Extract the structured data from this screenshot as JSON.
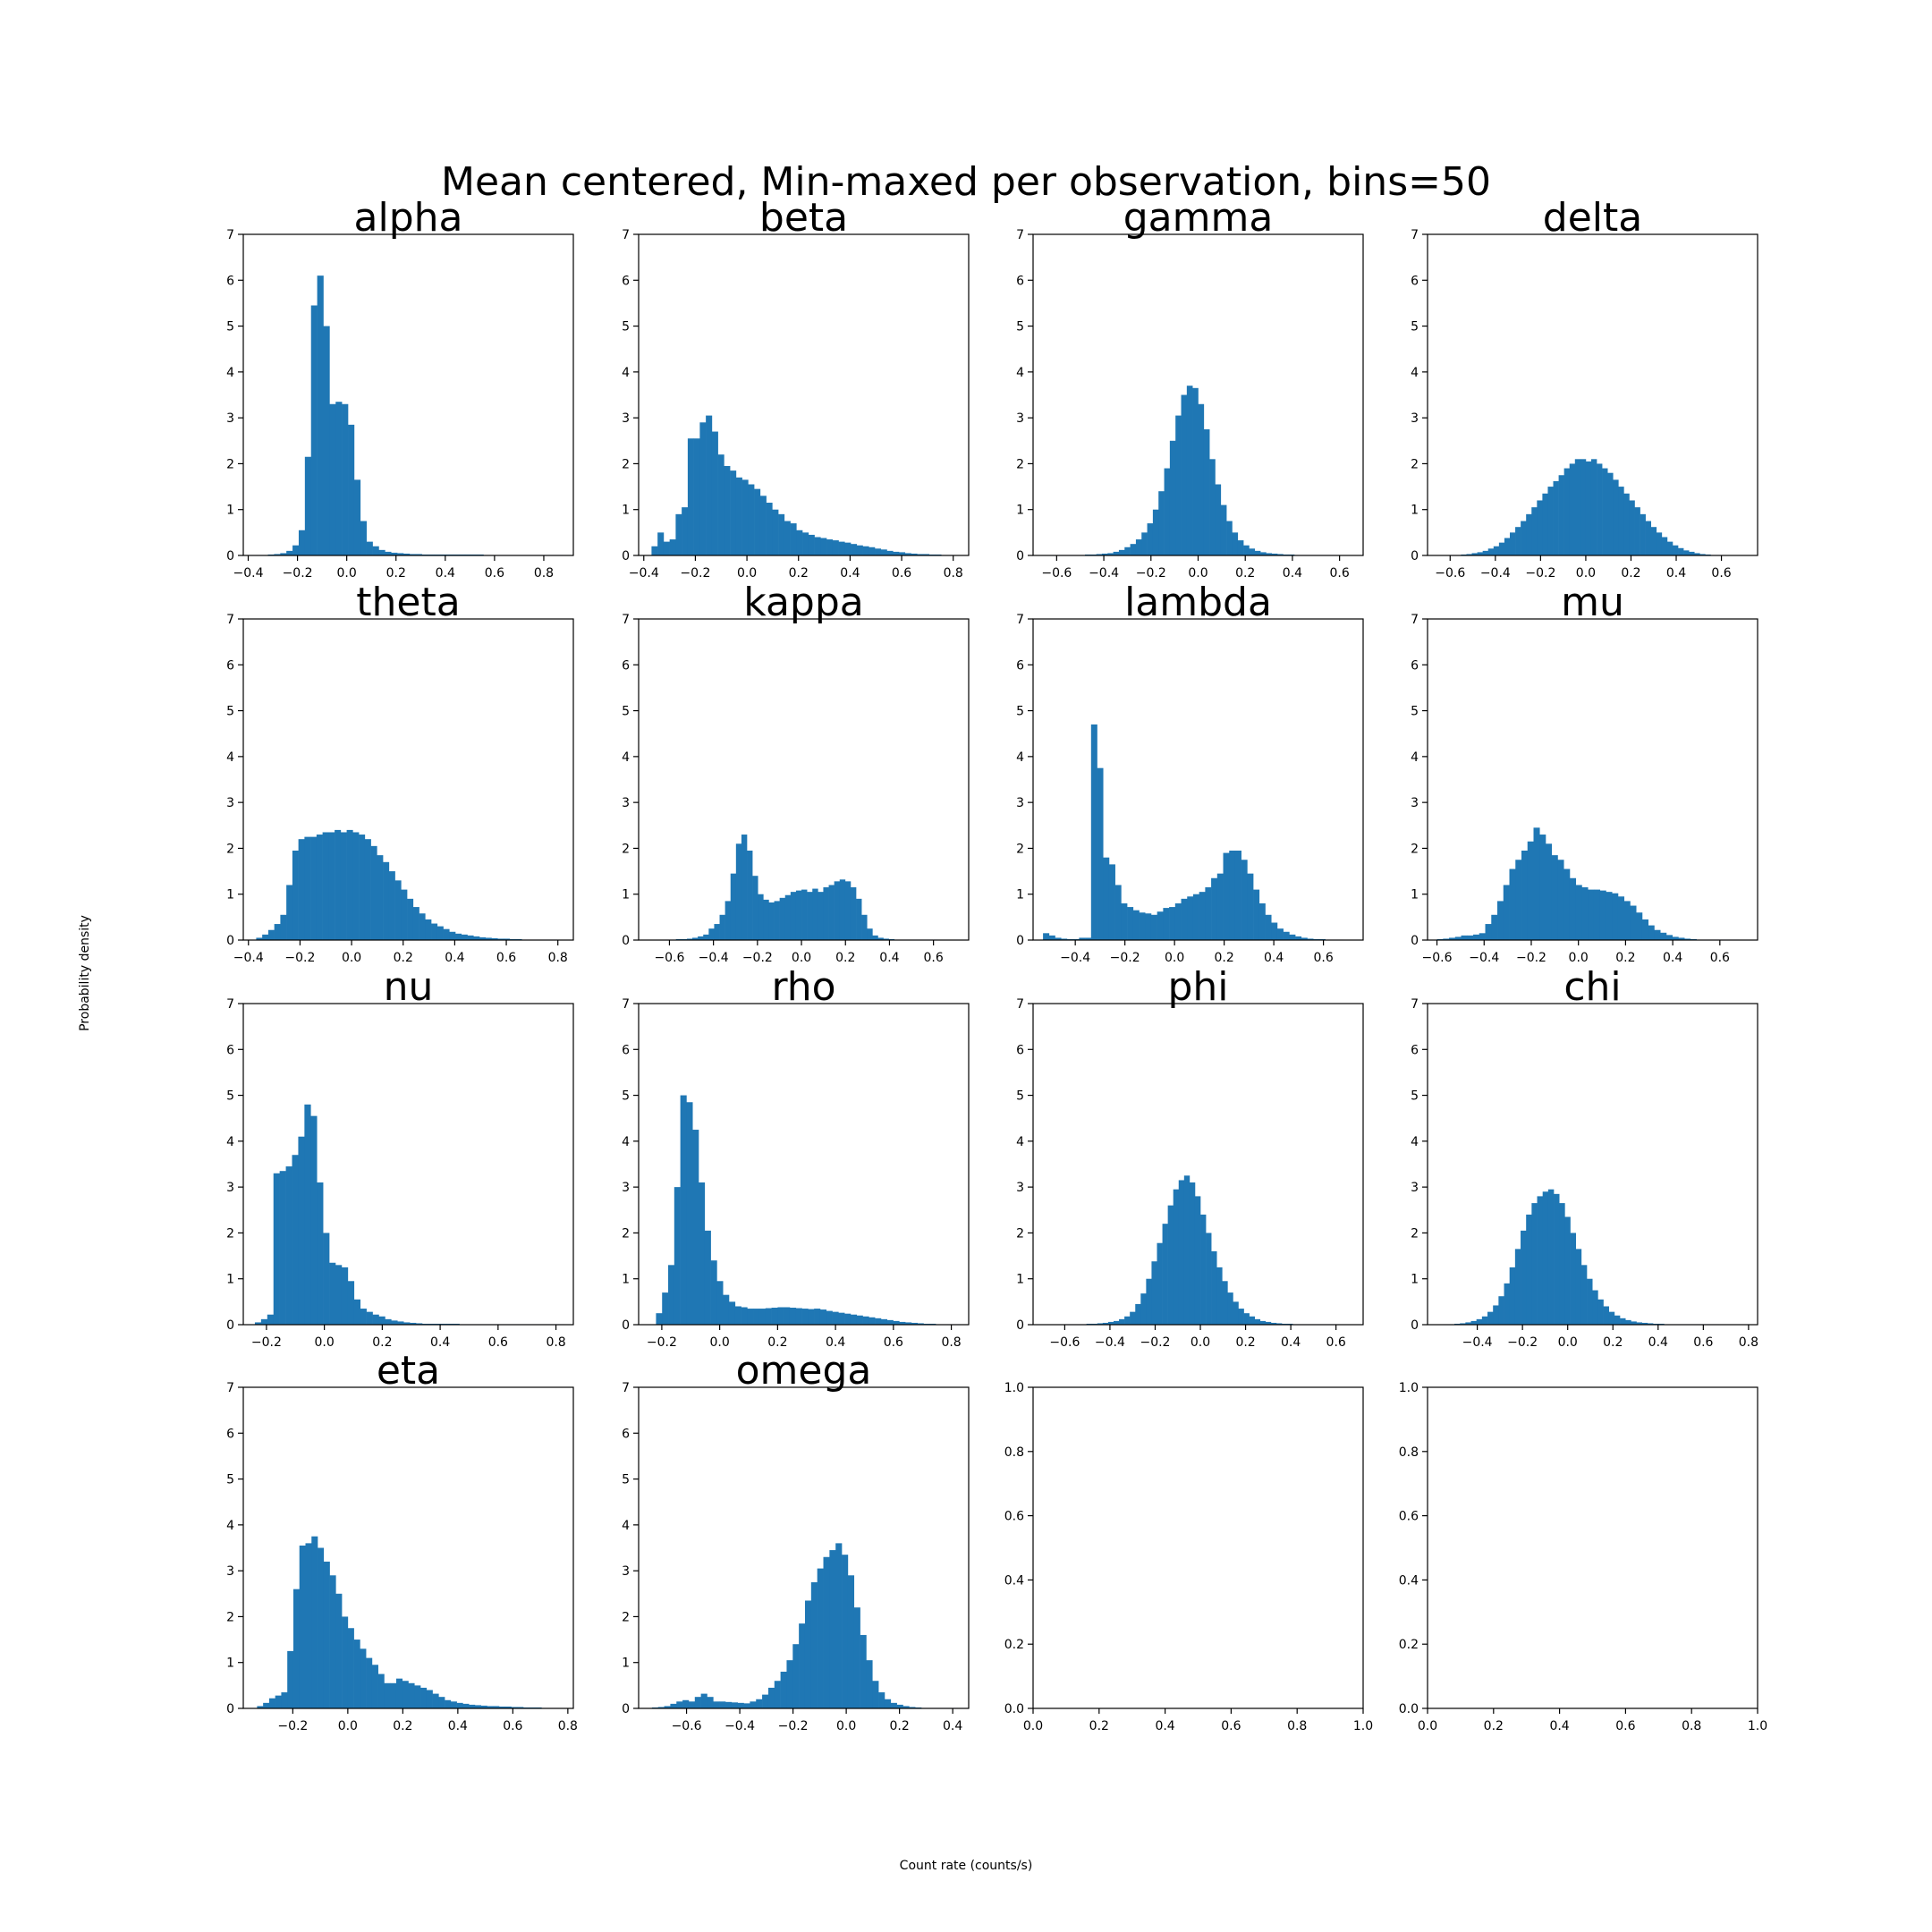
{
  "figure": {
    "suptitle": "Mean centered, Min-maxed per observation, bins=50",
    "xlabel": "Count rate (counts/s)",
    "ylabel": "Probability density"
  },
  "colors": {
    "bar": "#1f77b4",
    "axis": "#000000",
    "background": "#ffffff"
  },
  "chart_data": [
    {
      "type": "bar",
      "title": "alpha",
      "xlim": [
        -0.42,
        0.92
      ],
      "ylim": [
        0,
        7
      ],
      "xticks": [
        -0.4,
        -0.2,
        0.0,
        0.2,
        0.4,
        0.6,
        0.8
      ],
      "yticks": [
        0,
        1,
        2,
        3,
        4,
        5,
        6,
        7
      ],
      "bins_x0": -0.37,
      "bins_x1": 0.88,
      "values": [
        0.01,
        0.01,
        0.02,
        0.03,
        0.05,
        0.1,
        0.22,
        0.55,
        2.15,
        5.45,
        6.1,
        5.0,
        3.3,
        3.35,
        3.3,
        2.85,
        1.65,
        0.75,
        0.3,
        0.2,
        0.12,
        0.08,
        0.06,
        0.05,
        0.04,
        0.03,
        0.03,
        0.02,
        0.02,
        0.02,
        0.02,
        0.02,
        0.02,
        0.02,
        0.02,
        0.02,
        0.02,
        0.01,
        0.01,
        0.01,
        0.01,
        0.01,
        0.01,
        0.01,
        0.01,
        0.01,
        0.01,
        0.01,
        0.01,
        0.01
      ]
    },
    {
      "type": "bar",
      "title": "beta",
      "xlim": [
        -0.42,
        0.86
      ],
      "ylim": [
        0,
        7
      ],
      "xticks": [
        -0.4,
        -0.2,
        0.0,
        0.2,
        0.4,
        0.6,
        0.8
      ],
      "yticks": [
        0,
        1,
        2,
        3,
        4,
        5,
        6,
        7
      ],
      "bins_x0": -0.37,
      "bins_x1": 0.8,
      "values": [
        0.2,
        0.5,
        0.3,
        0.35,
        0.9,
        1.05,
        2.55,
        2.55,
        2.9,
        3.05,
        2.7,
        2.2,
        1.95,
        1.85,
        1.7,
        1.65,
        1.55,
        1.45,
        1.3,
        1.15,
        1.0,
        0.9,
        0.75,
        0.7,
        0.55,
        0.5,
        0.45,
        0.4,
        0.38,
        0.35,
        0.33,
        0.3,
        0.28,
        0.25,
        0.22,
        0.2,
        0.18,
        0.15,
        0.13,
        0.1,
        0.08,
        0.07,
        0.05,
        0.04,
        0.03,
        0.03,
        0.02,
        0.02,
        0.01,
        0.01
      ]
    },
    {
      "type": "bar",
      "title": "gamma",
      "xlim": [
        -0.7,
        0.7
      ],
      "ylim": [
        0,
        7
      ],
      "xticks": [
        -0.6,
        -0.4,
        -0.2,
        0.0,
        0.2,
        0.4,
        0.6
      ],
      "yticks": [
        0,
        1,
        2,
        3,
        4,
        5,
        6,
        7
      ],
      "bins_x0": -0.6,
      "bins_x1": 0.6,
      "values": [
        0.01,
        0.01,
        0.01,
        0.01,
        0.01,
        0.02,
        0.02,
        0.03,
        0.04,
        0.05,
        0.08,
        0.12,
        0.18,
        0.25,
        0.35,
        0.5,
        0.7,
        1.0,
        1.4,
        1.9,
        2.5,
        3.05,
        3.5,
        3.7,
        3.65,
        3.3,
        2.75,
        2.1,
        1.55,
        1.1,
        0.75,
        0.5,
        0.33,
        0.22,
        0.15,
        0.1,
        0.07,
        0.05,
        0.04,
        0.03,
        0.02,
        0.02,
        0.01,
        0.01,
        0.01,
        0.01,
        0.01,
        0.01,
        0.01,
        0.01
      ]
    },
    {
      "type": "bar",
      "title": "delta",
      "xlim": [
        -0.7,
        0.76
      ],
      "ylim": [
        0,
        7
      ],
      "xticks": [
        -0.6,
        -0.4,
        -0.2,
        0.0,
        0.2,
        0.4,
        0.6
      ],
      "yticks": [
        0,
        1,
        2,
        3,
        4,
        5,
        6,
        7
      ],
      "bins_x0": -0.6,
      "bins_x1": 0.6,
      "values": [
        0.01,
        0.01,
        0.02,
        0.03,
        0.05,
        0.07,
        0.1,
        0.15,
        0.2,
        0.28,
        0.38,
        0.5,
        0.62,
        0.75,
        0.9,
        1.05,
        1.2,
        1.35,
        1.5,
        1.62,
        1.75,
        1.9,
        2.0,
        2.1,
        2.1,
        2.05,
        2.1,
        2.0,
        1.9,
        1.8,
        1.65,
        1.5,
        1.35,
        1.2,
        1.05,
        0.9,
        0.75,
        0.62,
        0.5,
        0.4,
        0.3,
        0.22,
        0.16,
        0.11,
        0.08,
        0.05,
        0.03,
        0.02,
        0.01,
        0.01
      ]
    },
    {
      "type": "bar",
      "title": "theta",
      "xlim": [
        -0.42,
        0.86
      ],
      "ylim": [
        0,
        7
      ],
      "xticks": [
        -0.4,
        -0.2,
        0.0,
        0.2,
        0.4,
        0.6,
        0.8
      ],
      "yticks": [
        0,
        1,
        2,
        3,
        4,
        5,
        6,
        7
      ],
      "bins_x0": -0.37,
      "bins_x1": 0.8,
      "values": [
        0.05,
        0.12,
        0.22,
        0.35,
        0.55,
        1.2,
        1.95,
        2.2,
        2.25,
        2.25,
        2.3,
        2.35,
        2.35,
        2.4,
        2.35,
        2.4,
        2.35,
        2.3,
        2.2,
        2.05,
        1.85,
        1.7,
        1.5,
        1.3,
        1.1,
        0.9,
        0.72,
        0.58,
        0.45,
        0.36,
        0.3,
        0.24,
        0.18,
        0.14,
        0.12,
        0.1,
        0.08,
        0.06,
        0.05,
        0.04,
        0.03,
        0.03,
        0.02,
        0.02,
        0.01,
        0.01,
        0.01,
        0.01,
        0.01,
        0.01
      ]
    },
    {
      "type": "bar",
      "title": "kappa",
      "xlim": [
        -0.74,
        0.76
      ],
      "ylim": [
        0,
        7
      ],
      "xticks": [
        -0.6,
        -0.4,
        -0.2,
        0.0,
        0.2,
        0.4,
        0.6
      ],
      "yticks": [
        0,
        1,
        2,
        3,
        4,
        5,
        6,
        7
      ],
      "bins_x0": -0.62,
      "bins_x1": 0.62,
      "values": [
        0.01,
        0.01,
        0.02,
        0.02,
        0.03,
        0.05,
        0.08,
        0.12,
        0.25,
        0.35,
        0.55,
        0.85,
        1.45,
        2.1,
        2.3,
        1.95,
        1.4,
        1.0,
        0.88,
        0.82,
        0.85,
        0.92,
        0.98,
        1.05,
        1.08,
        1.1,
        1.05,
        1.12,
        1.05,
        1.15,
        1.2,
        1.28,
        1.32,
        1.28,
        1.15,
        0.9,
        0.55,
        0.25,
        0.1,
        0.05,
        0.03,
        0.02,
        0.01,
        0.01,
        0.01,
        0.01,
        0.01,
        0.01,
        0.01,
        0.01
      ]
    },
    {
      "type": "bar",
      "title": "lambda",
      "xlim": [
        -0.57,
        0.76
      ],
      "ylim": [
        0,
        7
      ],
      "xticks": [
        -0.4,
        -0.2,
        0.0,
        0.2,
        0.4,
        0.6
      ],
      "yticks": [
        0,
        1,
        2,
        3,
        4,
        5,
        6,
        7
      ],
      "bins_x0": -0.53,
      "bins_x1": 0.68,
      "values": [
        0.15,
        0.1,
        0.05,
        0.03,
        0.02,
        0.02,
        0.05,
        0.05,
        4.7,
        3.75,
        1.8,
        1.65,
        1.2,
        0.8,
        0.72,
        0.65,
        0.6,
        0.58,
        0.55,
        0.62,
        0.7,
        0.72,
        0.8,
        0.9,
        0.95,
        1.0,
        1.05,
        1.15,
        1.35,
        1.45,
        1.9,
        1.95,
        1.95,
        1.75,
        1.45,
        1.1,
        0.8,
        0.55,
        0.38,
        0.25,
        0.18,
        0.12,
        0.08,
        0.05,
        0.03,
        0.02,
        0.02,
        0.01,
        0.01,
        0.01
      ]
    },
    {
      "type": "bar",
      "title": "mu",
      "xlim": [
        -0.64,
        0.76
      ],
      "ylim": [
        0,
        7
      ],
      "xticks": [
        -0.6,
        -0.4,
        -0.2,
        0.0,
        0.2,
        0.4,
        0.6
      ],
      "yticks": [
        0,
        1,
        2,
        3,
        4,
        5,
        6,
        7
      ],
      "bins_x0": -0.6,
      "bins_x1": 0.68,
      "values": [
        0.02,
        0.03,
        0.05,
        0.07,
        0.1,
        0.1,
        0.12,
        0.15,
        0.35,
        0.55,
        0.85,
        1.2,
        1.55,
        1.75,
        1.95,
        2.15,
        2.45,
        2.3,
        2.1,
        1.85,
        1.75,
        1.55,
        1.35,
        1.2,
        1.15,
        1.1,
        1.1,
        1.08,
        1.05,
        1.02,
        0.95,
        0.85,
        0.75,
        0.6,
        0.45,
        0.32,
        0.22,
        0.16,
        0.11,
        0.07,
        0.05,
        0.03,
        0.02,
        0.01,
        0.01,
        0.01,
        0.01,
        0.01,
        0.01,
        0.01
      ]
    },
    {
      "type": "bar",
      "title": "nu",
      "xlim": [
        -0.28,
        0.86
      ],
      "ylim": [
        0,
        7
      ],
      "xticks": [
        -0.2,
        0.0,
        0.2,
        0.4,
        0.6,
        0.8
      ],
      "yticks": [
        0,
        1,
        2,
        3,
        4,
        5,
        6,
        7
      ],
      "bins_x0": -0.24,
      "bins_x1": 0.83,
      "values": [
        0.05,
        0.12,
        0.22,
        3.3,
        3.35,
        3.45,
        3.7,
        4.1,
        4.8,
        4.55,
        3.1,
        2.0,
        1.35,
        1.3,
        1.25,
        0.95,
        0.55,
        0.35,
        0.28,
        0.22,
        0.18,
        0.12,
        0.09,
        0.07,
        0.05,
        0.04,
        0.03,
        0.02,
        0.02,
        0.02,
        0.02,
        0.02,
        0.02,
        0.01,
        0.01,
        0.01,
        0.01,
        0.01,
        0.01,
        0.01,
        0.01,
        0.01,
        0.01,
        0.01,
        0.01,
        0.01,
        0.01,
        0.01,
        0.01,
        0.01
      ]
    },
    {
      "type": "bar",
      "title": "rho",
      "xlim": [
        -0.28,
        0.86
      ],
      "ylim": [
        0,
        7
      ],
      "xticks": [
        -0.2,
        0.0,
        0.2,
        0.4,
        0.6,
        0.8
      ],
      "yticks": [
        0,
        1,
        2,
        3,
        4,
        5,
        6,
        7
      ],
      "bins_x0": -0.22,
      "bins_x1": 0.83,
      "values": [
        0.25,
        0.7,
        1.3,
        3.0,
        5.0,
        4.85,
        4.25,
        3.1,
        2.05,
        1.4,
        0.95,
        0.65,
        0.5,
        0.4,
        0.38,
        0.35,
        0.35,
        0.35,
        0.36,
        0.37,
        0.38,
        0.38,
        0.37,
        0.36,
        0.35,
        0.34,
        0.35,
        0.33,
        0.3,
        0.28,
        0.26,
        0.24,
        0.22,
        0.2,
        0.18,
        0.16,
        0.14,
        0.12,
        0.1,
        0.08,
        0.06,
        0.05,
        0.04,
        0.03,
        0.02,
        0.02,
        0.01,
        0.01,
        0.01,
        0.01
      ]
    },
    {
      "type": "bar",
      "title": "phi",
      "xlim": [
        -0.74,
        0.72
      ],
      "ylim": [
        0,
        7
      ],
      "xticks": [
        -0.6,
        -0.4,
        -0.2,
        0.0,
        0.2,
        0.4,
        0.6
      ],
      "yticks": [
        0,
        1,
        2,
        3,
        4,
        5,
        6,
        7
      ],
      "bins_x0": -0.6,
      "bins_x1": 0.6,
      "values": [
        0.01,
        0.01,
        0.01,
        0.01,
        0.02,
        0.02,
        0.03,
        0.04,
        0.06,
        0.08,
        0.12,
        0.18,
        0.28,
        0.45,
        0.68,
        1.0,
        1.38,
        1.78,
        2.2,
        2.6,
        2.95,
        3.15,
        3.25,
        3.1,
        2.8,
        2.4,
        2.0,
        1.6,
        1.25,
        0.95,
        0.7,
        0.5,
        0.35,
        0.25,
        0.18,
        0.12,
        0.08,
        0.06,
        0.04,
        0.03,
        0.02,
        0.02,
        0.01,
        0.01,
        0.01,
        0.01,
        0.01,
        0.01,
        0.01,
        0.01
      ]
    },
    {
      "type": "bar",
      "title": "chi",
      "xlim": [
        -0.62,
        0.84
      ],
      "ylim": [
        0,
        7
      ],
      "xticks": [
        -0.4,
        -0.2,
        0.0,
        0.2,
        0.4,
        0.6,
        0.8
      ],
      "yticks": [
        0,
        1,
        2,
        3,
        4,
        5,
        6,
        7
      ],
      "bins_x0": -0.55,
      "bins_x1": 0.67,
      "values": [
        0.01,
        0.01,
        0.02,
        0.03,
        0.05,
        0.08,
        0.12,
        0.18,
        0.28,
        0.42,
        0.62,
        0.9,
        1.25,
        1.65,
        2.05,
        2.4,
        2.65,
        2.8,
        2.9,
        2.95,
        2.85,
        2.65,
        2.35,
        2.0,
        1.65,
        1.3,
        1.0,
        0.75,
        0.55,
        0.4,
        0.28,
        0.2,
        0.14,
        0.1,
        0.07,
        0.05,
        0.04,
        0.03,
        0.02,
        0.02,
        0.01,
        0.01,
        0.01,
        0.01,
        0.01,
        0.01,
        0.01,
        0.01,
        0.01,
        0.01
      ]
    },
    {
      "type": "bar",
      "title": "eta",
      "xlim": [
        -0.38,
        0.82
      ],
      "ylim": [
        0,
        7
      ],
      "xticks": [
        -0.2,
        0.0,
        0.2,
        0.4,
        0.6,
        0.8
      ],
      "yticks": [
        0,
        1,
        2,
        3,
        4,
        5,
        6,
        7
      ],
      "bins_x0": -0.33,
      "bins_x1": 0.77,
      "values": [
        0.05,
        0.12,
        0.22,
        0.28,
        0.35,
        1.25,
        2.6,
        3.55,
        3.6,
        3.75,
        3.5,
        3.2,
        2.9,
        2.5,
        2.0,
        1.75,
        1.5,
        1.3,
        1.1,
        0.95,
        0.75,
        0.55,
        0.55,
        0.65,
        0.6,
        0.55,
        0.5,
        0.45,
        0.4,
        0.32,
        0.25,
        0.18,
        0.15,
        0.12,
        0.1,
        0.08,
        0.07,
        0.06,
        0.05,
        0.05,
        0.04,
        0.04,
        0.03,
        0.03,
        0.02,
        0.02,
        0.02,
        0.01,
        0.01,
        0.01
      ]
    },
    {
      "type": "bar",
      "title": "omega",
      "xlim": [
        -0.78,
        0.46
      ],
      "ylim": [
        0,
        7
      ],
      "xticks": [
        -0.6,
        -0.4,
        -0.2,
        0.0,
        0.2,
        0.4
      ],
      "yticks": [
        0,
        1,
        2,
        3,
        4,
        5,
        6,
        7
      ],
      "bins_x0": -0.73,
      "bins_x1": 0.42,
      "values": [
        0.02,
        0.03,
        0.05,
        0.1,
        0.15,
        0.18,
        0.15,
        0.25,
        0.32,
        0.25,
        0.15,
        0.15,
        0.14,
        0.13,
        0.12,
        0.11,
        0.15,
        0.2,
        0.3,
        0.45,
        0.6,
        0.8,
        1.05,
        1.4,
        1.85,
        2.35,
        2.75,
        3.05,
        3.3,
        3.45,
        3.6,
        3.35,
        2.9,
        2.2,
        1.6,
        1.05,
        0.6,
        0.35,
        0.2,
        0.12,
        0.08,
        0.05,
        0.03,
        0.02,
        0.01,
        0.01,
        0.01,
        0.01,
        0.01,
        0.01
      ]
    },
    {
      "type": "bar",
      "title": "",
      "xlim": [
        0,
        1
      ],
      "ylim": [
        0,
        1
      ],
      "xticks": [
        0.0,
        0.2,
        0.4,
        0.6,
        0.8,
        1.0
      ],
      "yticks": [
        0.0,
        0.2,
        0.4,
        0.6,
        0.8,
        1.0
      ],
      "values": []
    },
    {
      "type": "bar",
      "title": "",
      "xlim": [
        0,
        1
      ],
      "ylim": [
        0,
        1
      ],
      "xticks": [
        0.0,
        0.2,
        0.4,
        0.6,
        0.8,
        1.0
      ],
      "yticks": [
        0.0,
        0.2,
        0.4,
        0.6,
        0.8,
        1.0
      ],
      "values": []
    }
  ]
}
